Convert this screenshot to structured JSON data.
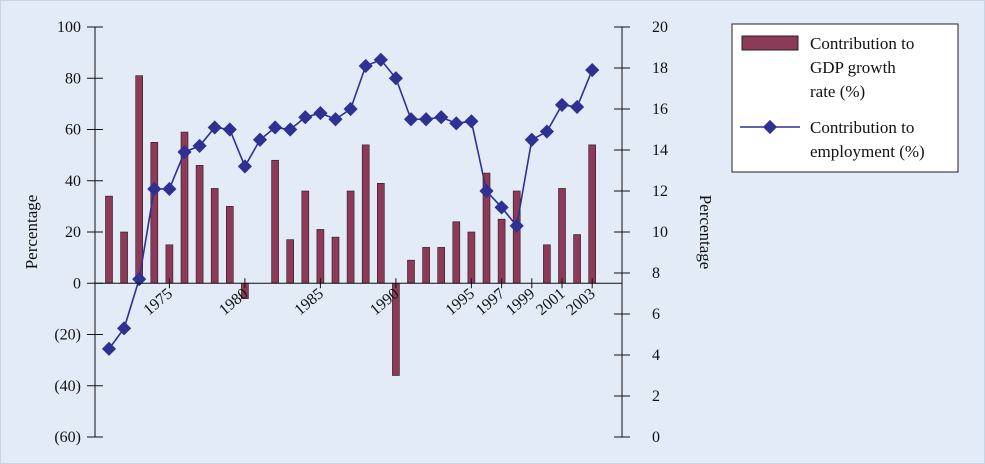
{
  "chart_data": {
    "type": "bar+line",
    "title": "",
    "x_tick_labels": [
      "1975",
      "1980",
      "1985",
      "1990",
      "1995",
      "1997",
      "1999",
      "2001",
      "2003"
    ],
    "y_left": {
      "label": "Percentage",
      "ticks": [
        "100",
        "80",
        "60",
        "40",
        "20",
        "0",
        "(20)",
        "(40)",
        "(60)"
      ],
      "range": [
        -60,
        100
      ]
    },
    "y_right": {
      "label": "Percentage",
      "ticks": [
        "20",
        "18",
        "16",
        "14",
        "12",
        "10",
        "8",
        "6",
        "4",
        "2",
        "0"
      ],
      "range": [
        0,
        20
      ]
    },
    "x": [
      1971,
      1972,
      1973,
      1974,
      1975,
      1976,
      1977,
      1978,
      1979,
      1980,
      1981,
      1982,
      1983,
      1984,
      1985,
      1986,
      1987,
      1988,
      1989,
      1990,
      1991,
      1992,
      1993,
      1994,
      1995,
      1996,
      1997,
      1998,
      1999,
      2000,
      2001,
      2002,
      2003
    ],
    "series": [
      {
        "name": "Contribution to GDP growth rate (%)",
        "axis": "left",
        "kind": "bar",
        "color": "#8c3a58",
        "values": [
          34,
          20,
          81,
          55,
          15,
          59,
          46,
          37,
          30,
          -6,
          0,
          48,
          17,
          36,
          21,
          18,
          36,
          54,
          39,
          -36,
          9,
          14,
          14,
          24,
          20,
          43,
          25,
          36,
          0,
          15,
          37,
          19,
          54
        ]
      },
      {
        "name": "Contribution to employment (%)",
        "axis": "right",
        "kind": "line",
        "color": "#2e3192",
        "values": [
          4.3,
          5.3,
          7.7,
          12.1,
          12.1,
          13.9,
          14.2,
          15.1,
          15.0,
          13.2,
          14.5,
          15.1,
          15.0,
          15.6,
          15.8,
          15.5,
          16.0,
          18.1,
          18.4,
          17.5,
          15.5,
          15.5,
          15.6,
          15.3,
          15.4,
          12.0,
          11.2,
          10.3,
          14.5,
          14.9,
          16.2,
          16.1,
          17.9
        ]
      }
    ],
    "legend": {
      "position": "top-right",
      "bar_label_lines": [
        "Contribution to",
        "GDP growth",
        "rate (%)"
      ],
      "line_label_lines": [
        "Contribution to",
        "employment (%)"
      ]
    },
    "grid": false
  }
}
